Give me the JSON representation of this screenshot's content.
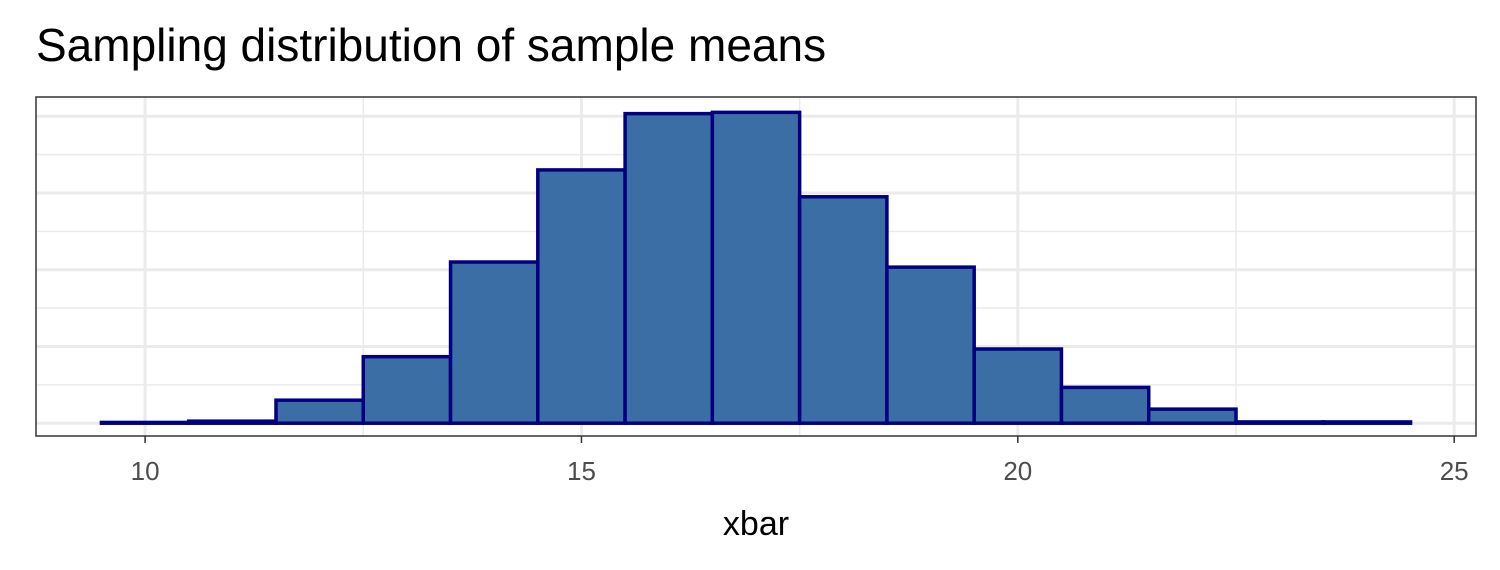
{
  "chart_data": {
    "type": "bar",
    "title": "Sampling distribution of sample means",
    "subtitle": "",
    "xlabel": "xbar",
    "ylabel": "",
    "bin_width": 1,
    "bins": [
      {
        "x": 10,
        "count": 0.3
      },
      {
        "x": 11,
        "count": 0.8
      },
      {
        "x": 12,
        "count": 9
      },
      {
        "x": 13,
        "count": 26
      },
      {
        "x": 14,
        "count": 63
      },
      {
        "x": 15,
        "count": 99
      },
      {
        "x": 16,
        "count": 121
      },
      {
        "x": 17,
        "count": 121.5
      },
      {
        "x": 18,
        "count": 88.5
      },
      {
        "x": 19,
        "count": 61
      },
      {
        "x": 20,
        "count": 29
      },
      {
        "x": 21,
        "count": 14
      },
      {
        "x": 22,
        "count": 5.5
      },
      {
        "x": 23,
        "count": 0.5
      },
      {
        "x": 24,
        "count": 0.5
      }
    ],
    "xlim": [
      8.75,
      25.25
    ],
    "ylim": [
      -5,
      127.5
    ],
    "x_ticks": [
      10,
      15,
      20,
      25
    ],
    "y_grid_major": [
      0,
      30,
      60,
      90,
      120
    ],
    "y_grid_minor": [
      15,
      45,
      75,
      105
    ],
    "x_grid_minor": [
      12.5,
      17.5,
      22.5
    ],
    "y_tick_labels_shown": false,
    "grid": true,
    "legend": "none",
    "colors": {
      "fill": "#3a6ea5",
      "outline": "#000080",
      "grid": "#ebebeb",
      "panel_border": "#333333",
      "tick_text": "#4d4d4d"
    }
  }
}
